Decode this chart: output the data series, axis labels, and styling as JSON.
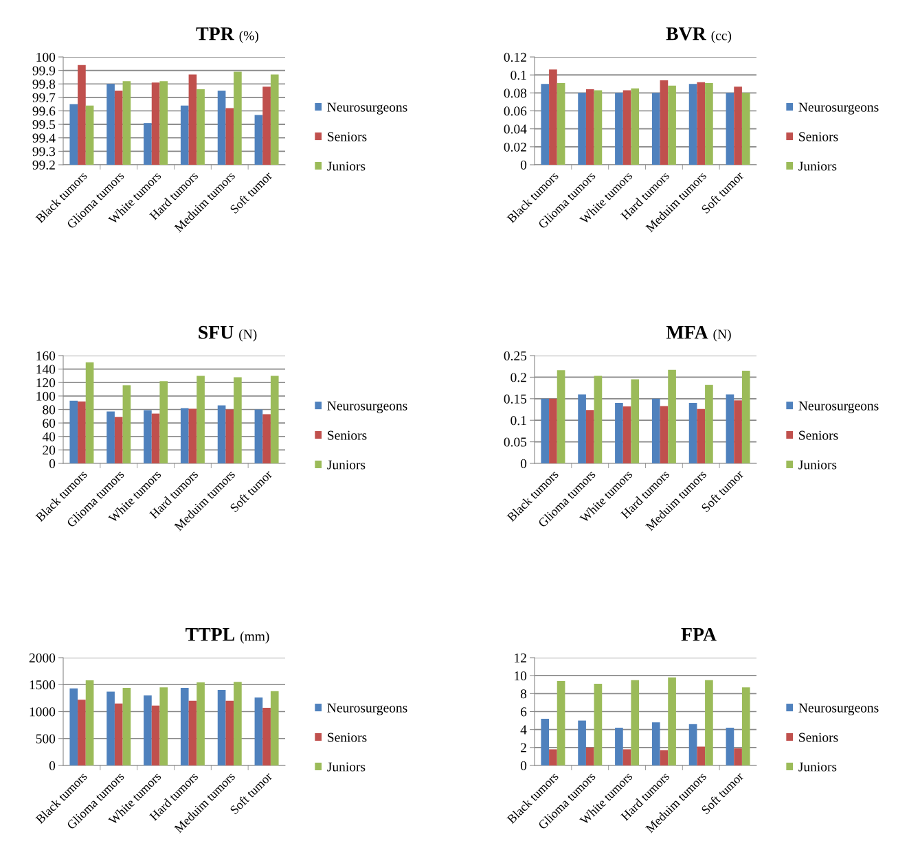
{
  "chart_data": [
    {
      "type": "bar",
      "title": "TPR (%)",
      "categories": [
        "Black tumors",
        "Glioma tumors",
        "White tumors",
        "Hard tumors",
        "Meduim tumors",
        "Soft tumor"
      ],
      "series": [
        {
          "name": "Neurosurgeons",
          "color": "#4f81bd",
          "values": [
            99.65,
            99.8,
            99.51,
            99.64,
            99.75,
            99.57
          ]
        },
        {
          "name": "Seniors",
          "color": "#c0504d",
          "values": [
            99.94,
            99.75,
            99.81,
            99.87,
            99.62,
            99.78
          ]
        },
        {
          "name": "Juniors",
          "color": "#9bbb59",
          "values": [
            99.64,
            99.82,
            99.82,
            99.76,
            99.89,
            99.87
          ]
        }
      ],
      "ylim": [
        99.2,
        100
      ],
      "yticks": [
        99.2,
        99.3,
        99.4,
        99.5,
        99.6,
        99.7,
        99.8,
        99.9,
        100
      ],
      "grid": "y",
      "legend": "right"
    },
    {
      "type": "bar",
      "title": "BVR (cc)",
      "categories": [
        "Black tumors",
        "Glioma tumors",
        "White tumors",
        "Hard tumors",
        "Meduim tumors",
        "Soft tumor"
      ],
      "series": [
        {
          "name": "Neurosurgeons",
          "color": "#4f81bd",
          "values": [
            0.09,
            0.08,
            0.08,
            0.08,
            0.09,
            0.08
          ]
        },
        {
          "name": "Seniors",
          "color": "#c0504d",
          "values": [
            0.106,
            0.084,
            0.083,
            0.094,
            0.092,
            0.087
          ]
        },
        {
          "name": "Juniors",
          "color": "#9bbb59",
          "values": [
            0.091,
            0.083,
            0.085,
            0.088,
            0.091,
            0.08
          ]
        }
      ],
      "ylim": [
        0,
        0.12
      ],
      "yticks": [
        0,
        0.02,
        0.04,
        0.06,
        0.08,
        0.1,
        0.12
      ],
      "grid": "y",
      "legend": "right"
    },
    {
      "type": "bar",
      "title": "SFU (N)",
      "categories": [
        "Black tumors",
        "Glioma tumors",
        "White tumors",
        "Hard tumors",
        "Meduim tumors",
        "Soft tumor"
      ],
      "series": [
        {
          "name": "Neurosurgeons",
          "color": "#4f81bd",
          "values": [
            93,
            77,
            79,
            82,
            86,
            80
          ]
        },
        {
          "name": "Seniors",
          "color": "#c0504d",
          "values": [
            92,
            69,
            74,
            81,
            80,
            73
          ]
        },
        {
          "name": "Juniors",
          "color": "#9bbb59",
          "values": [
            150,
            116,
            122,
            130,
            128,
            130
          ]
        }
      ],
      "ylim": [
        0,
        160
      ],
      "yticks": [
        0,
        20,
        40,
        60,
        80,
        100,
        120,
        140,
        160
      ],
      "grid": "y",
      "legend": "right"
    },
    {
      "type": "bar",
      "title": "MFA (N)",
      "categories": [
        "Black tumors",
        "Glioma tumors",
        "White tumors",
        "Hard tumors",
        "Meduim tumors",
        "Soft tumor"
      ],
      "series": [
        {
          "name": "Neurosurgeons",
          "color": "#4f81bd",
          "values": [
            0.15,
            0.16,
            0.14,
            0.15,
            0.14,
            0.16
          ]
        },
        {
          "name": "Seniors",
          "color": "#c0504d",
          "values": [
            0.15,
            0.124,
            0.132,
            0.133,
            0.126,
            0.146
          ]
        },
        {
          "name": "Juniors",
          "color": "#9bbb59",
          "values": [
            0.216,
            0.203,
            0.195,
            0.217,
            0.182,
            0.215
          ]
        }
      ],
      "ylim": [
        0,
        0.25
      ],
      "yticks": [
        0,
        0.05,
        0.1,
        0.15,
        0.2,
        0.25
      ],
      "grid": "y",
      "legend": "right"
    },
    {
      "type": "bar",
      "title": "TTPL (mm)",
      "categories": [
        "Black tumors",
        "Glioma tumors",
        "White tumors",
        "Hard tumors",
        "Meduim tumors",
        "Soft tumor"
      ],
      "series": [
        {
          "name": "Neurosurgeons",
          "color": "#4f81bd",
          "values": [
            1430,
            1370,
            1300,
            1440,
            1400,
            1260
          ]
        },
        {
          "name": "Seniors",
          "color": "#c0504d",
          "values": [
            1220,
            1150,
            1110,
            1200,
            1200,
            1070
          ]
        },
        {
          "name": "Juniors",
          "color": "#9bbb59",
          "values": [
            1580,
            1440,
            1450,
            1540,
            1550,
            1380
          ]
        }
      ],
      "ylim": [
        0,
        2000
      ],
      "yticks": [
        0,
        500,
        1000,
        1500,
        2000
      ],
      "grid": "y",
      "legend": "right"
    },
    {
      "type": "bar",
      "title": "FPA",
      "categories": [
        "Black tumors",
        "Glioma tumors",
        "White tumors",
        "Hard tumors",
        "Meduim tumors",
        "Soft tumor"
      ],
      "series": [
        {
          "name": "Neurosurgeons",
          "color": "#4f81bd",
          "values": [
            5.2,
            5.0,
            4.2,
            4.8,
            4.6,
            4.2
          ]
        },
        {
          "name": "Seniors",
          "color": "#c0504d",
          "values": [
            1.8,
            2.0,
            1.8,
            1.7,
            2.1,
            1.9
          ]
        },
        {
          "name": "Juniors",
          "color": "#9bbb59",
          "values": [
            9.4,
            9.1,
            9.5,
            9.8,
            9.5,
            8.7
          ]
        }
      ],
      "ylim": [
        0,
        12
      ],
      "yticks": [
        0,
        2,
        4,
        6,
        8,
        10,
        12
      ],
      "grid": "y",
      "legend": "right"
    }
  ]
}
